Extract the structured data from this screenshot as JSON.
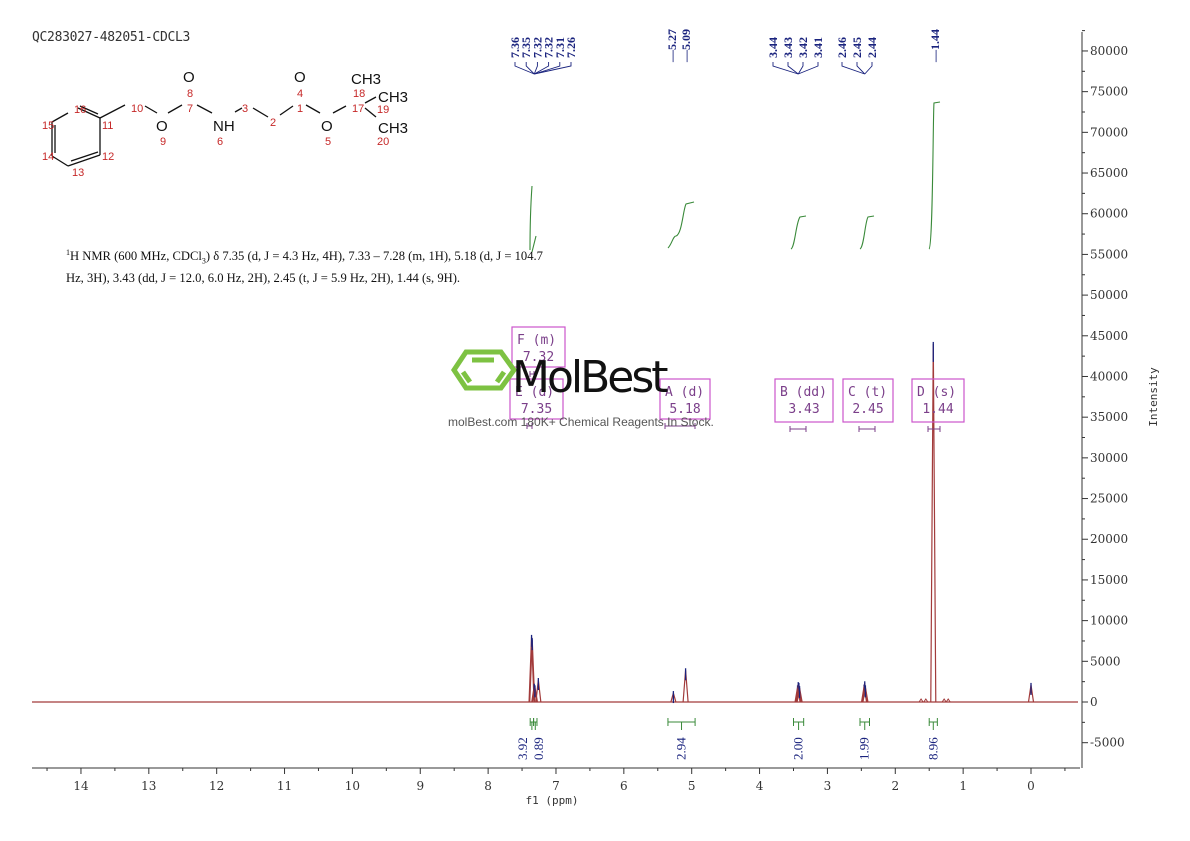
{
  "header": {
    "sample_id": "QC283027-482051-CDCL3"
  },
  "structure": {
    "atoms": [
      "O",
      "O",
      "CH3",
      "CH3",
      "CH3",
      "NH",
      "O",
      "O"
    ],
    "numbering": [
      "1",
      "2",
      "3",
      "4",
      "5",
      "6",
      "7",
      "8",
      "9",
      "10",
      "11",
      "12",
      "13",
      "14",
      "15",
      "16",
      "17",
      "18",
      "19",
      "20"
    ]
  },
  "nmr_description": {
    "line1_prefix": "1",
    "line1": "H NMR (600 MHz, CDCl",
    "sub": "3",
    "line1_rest": ") δ 7.35 (d, J = 4.3 Hz, 4H), 7.33 – 7.28 (m, 1H), 5.18 (d, J = 104.7",
    "line2": "Hz, 3H), 3.43 (dd, J = 12.0, 6.0 Hz, 2H), 2.45 (t, J = 5.9 Hz, 2H), 1.44 (s, 9H)."
  },
  "watermark": {
    "brand": "MolBest",
    "tagline": "molBest.com 180K+ Chemical Reagents In Stock.",
    "color": "#7dc242"
  },
  "chart_data": {
    "type": "line",
    "title": "QC283027-482051-CDCL3",
    "xlabel": "f1 (ppm)",
    "ylabel": "Intensity",
    "xlim": [
      14.75,
      -0.7
    ],
    "ylim": [
      -8000,
      82000
    ],
    "x_ticks": [
      14,
      13,
      12,
      11,
      10,
      9,
      8,
      7,
      6,
      5,
      4,
      3,
      2,
      1,
      0
    ],
    "y_ticks": [
      80000,
      75000,
      70000,
      65000,
      60000,
      55000,
      50000,
      45000,
      40000,
      35000,
      30000,
      25000,
      20000,
      15000,
      10000,
      5000,
      0,
      -5000
    ],
    "y_axis_position": "right",
    "grid": false,
    "peaks": [
      {
        "ppm": 7.36,
        "intensity": 8000
      },
      {
        "ppm": 7.35,
        "intensity": 7600
      },
      {
        "ppm": 7.32,
        "intensity": 2000
      },
      {
        "ppm": 7.31,
        "intensity": 1800
      },
      {
        "ppm": 7.26,
        "intensity": 2700
      },
      {
        "ppm": 5.27,
        "intensity": 1100
      },
      {
        "ppm": 5.09,
        "intensity": 3900
      },
      {
        "ppm": 3.44,
        "intensity": 1800
      },
      {
        "ppm": 3.43,
        "intensity": 2200
      },
      {
        "ppm": 3.42,
        "intensity": 2100
      },
      {
        "ppm": 3.41,
        "intensity": 1700
      },
      {
        "ppm": 2.46,
        "intensity": 1900
      },
      {
        "ppm": 2.45,
        "intensity": 2300
      },
      {
        "ppm": 2.44,
        "intensity": 1800
      },
      {
        "ppm": 1.44,
        "intensity": 44000
      },
      {
        "ppm": 0.0,
        "intensity": 2100
      }
    ],
    "peak_labels_top": {
      "group1": [
        "7.36",
        "7.35",
        "7.32",
        "7.32",
        "7.31",
        "7.26"
      ],
      "group2": [
        "5.27",
        "5.09"
      ],
      "group3": [
        "3.44",
        "3.43",
        "3.42",
        "3.41"
      ],
      "group4": [
        "2.46",
        "2.45",
        "2.44"
      ],
      "group5": [
        "1.44"
      ]
    },
    "multiplets": [
      {
        "id": "F",
        "type": "m",
        "shift": "7.32"
      },
      {
        "id": "E",
        "type": "d",
        "shift": "7.35"
      },
      {
        "id": "A",
        "type": "d",
        "shift": "5.18"
      },
      {
        "id": "B",
        "type": "dd",
        "shift": "3.43"
      },
      {
        "id": "C",
        "type": "t",
        "shift": "2.45"
      },
      {
        "id": "D",
        "type": "s",
        "shift": "1.44"
      }
    ],
    "integrals": [
      {
        "range": [
          7.38,
          7.33
        ],
        "value": "3.92"
      },
      {
        "range": [
          7.33,
          7.28
        ],
        "value": "0.89"
      },
      {
        "range": [
          5.35,
          4.95
        ],
        "value": "2.94"
      },
      {
        "range": [
          3.5,
          3.35
        ],
        "value": "2.00"
      },
      {
        "range": [
          2.52,
          2.38
        ],
        "value": "1.99"
      },
      {
        "range": [
          1.5,
          1.38
        ],
        "value": "8.96"
      }
    ],
    "series_color": "#a23b3b",
    "integral_color": "#3a8a3a",
    "multiplet_box_color": "#cc55cc"
  }
}
